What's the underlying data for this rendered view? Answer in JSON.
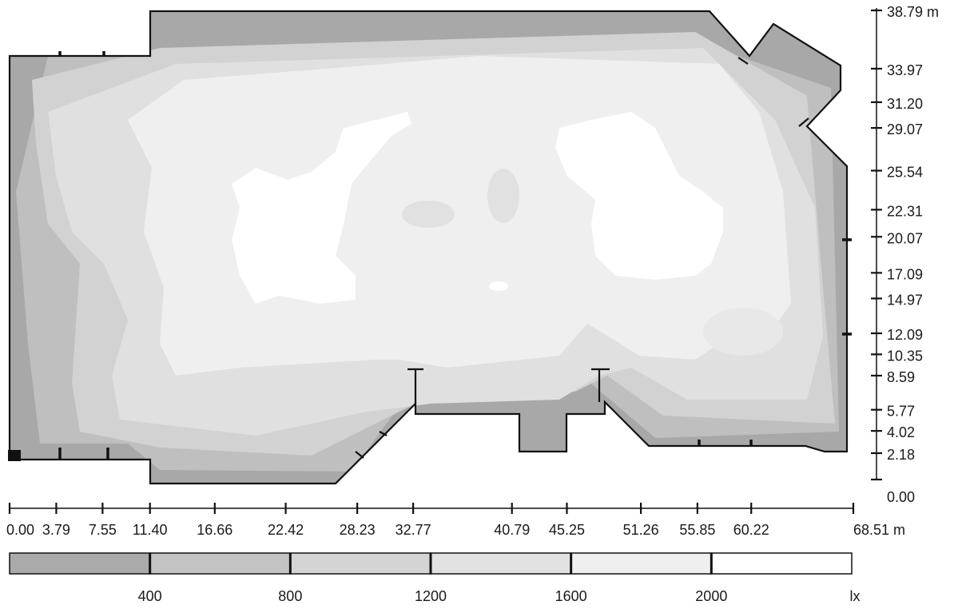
{
  "chart_data": {
    "type": "heatmap",
    "title": "",
    "x_axis": {
      "ticks": [
        "0.00",
        "3.79",
        "7.55",
        "11.40",
        "16.66",
        "22.42",
        "28.23",
        "32.77",
        "40.79",
        "45.25",
        "51.26",
        "55.85",
        "60.22",
        "68.51"
      ],
      "unit": "m"
    },
    "y_axis": {
      "ticks": [
        "38.79",
        "33.97",
        "31.20",
        "29.07",
        "25.54",
        "22.31",
        "20.07",
        "17.09",
        "14.97",
        "12.09",
        "10.35",
        "8.59",
        "5.77",
        "4.02",
        "2.18",
        "0.00"
      ],
      "unit": "m"
    },
    "legend": {
      "breaks": [
        "400",
        "800",
        "1200",
        "1600",
        "2000"
      ],
      "unit": "lx",
      "colors": [
        "#aaaaaa",
        "#c3c3c3",
        "#d4d4d4",
        "#e1e1e1",
        "#efefef",
        "#ffffff"
      ]
    }
  }
}
